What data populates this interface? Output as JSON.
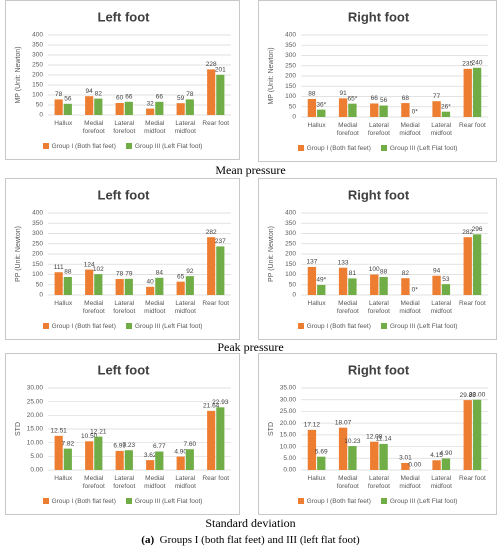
{
  "chart_data": [
    {
      "type": "bar",
      "title": "Left foot",
      "y_label": "MP (Unit: Newton)",
      "categories": [
        "Hallux",
        "Medial forefoot",
        "Lateral forefoot",
        "Medial midfoot",
        "Lateral midfoot",
        "Rear foot"
      ],
      "series": [
        {
          "name": "Group I (Both flat feet)",
          "color": "#ed7d31",
          "values": [
            78,
            94,
            60,
            32,
            59,
            228
          ]
        },
        {
          "name": "Group III (Left Flat foot)",
          "color": "#70ad47",
          "values": [
            56,
            82,
            66,
            66,
            78,
            201
          ]
        }
      ],
      "ylim": [
        0,
        400
      ],
      "yticks": [
        0,
        50,
        100,
        150,
        200,
        250,
        300,
        350,
        400
      ],
      "grid": true
    },
    {
      "type": "bar",
      "title": "Right foot",
      "y_label": "MP (Unit: Newton)",
      "categories": [
        "Hallux",
        "Medial forefoot",
        "Lateral forefoot",
        "Medial midfoot",
        "Lateral midfoot",
        "Rear foot"
      ],
      "series": [
        {
          "name": "Group I (Both flat feet)",
          "color": "#ed7d31",
          "values": [
            88,
            91,
            66,
            68,
            77,
            235
          ]
        },
        {
          "name": "Group III (Left Flat foot)",
          "color": "#70ad47",
          "values": [
            36,
            65,
            56,
            0,
            26,
            240
          ],
          "value_labels": [
            "36*",
            "65*",
            "56",
            "0*",
            "26*",
            "240"
          ]
        }
      ],
      "ylim": [
        0,
        400
      ],
      "yticks": [
        0,
        50,
        100,
        150,
        200,
        250,
        300,
        350,
        400
      ],
      "grid": true
    },
    {
      "type": "bar",
      "title": "Left foot",
      "y_label": "PP (Unit: Newton)",
      "categories": [
        "Hallux",
        "Medial forefoot",
        "Lateral forefoot",
        "Medial midfoot",
        "Lateral midfoot",
        "Rear foot"
      ],
      "series": [
        {
          "name": "Group I (Both flat feet)",
          "color": "#ed7d31",
          "values": [
            111,
            124,
            78,
            40,
            65,
            282
          ]
        },
        {
          "name": "Group III (Left Flat foot)",
          "color": "#70ad47",
          "values": [
            88,
            102,
            79,
            84,
            92,
            237
          ]
        }
      ],
      "ylim": [
        0,
        400
      ],
      "yticks": [
        0,
        50,
        100,
        150,
        200,
        250,
        300,
        350,
        400
      ],
      "grid": true
    },
    {
      "type": "bar",
      "title": "Right foot",
      "y_label": "PP (Unit: Newton)",
      "categories": [
        "Hallux",
        "Medial forefoot",
        "Lateral forefoot",
        "Medial midfoot",
        "Lateral midfoot",
        "Rear foot"
      ],
      "series": [
        {
          "name": "Group I (Both flat feet)",
          "color": "#ed7d31",
          "values": [
            137,
            133,
            100,
            82,
            94,
            282
          ]
        },
        {
          "name": "Group III (Left Flat foot)",
          "color": "#70ad47",
          "values": [
            49,
            81,
            88,
            0,
            53,
            296
          ],
          "value_labels": [
            "49*",
            "81",
            "88",
            "0*",
            "53",
            "296"
          ]
        }
      ],
      "ylim": [
        0,
        400
      ],
      "yticks": [
        0,
        50,
        100,
        150,
        200,
        250,
        300,
        350,
        400
      ],
      "grid": true
    },
    {
      "type": "bar",
      "title": "Left foot",
      "y_label": "STD",
      "categories": [
        "Hallux",
        "Medial forefoot",
        "Lateral forefoot",
        "Medial midfoot",
        "Lateral midfoot",
        "Rear foot"
      ],
      "series": [
        {
          "name": "Group I (Both flat feet)",
          "color": "#ed7d31",
          "values": [
            12.51,
            10.5,
            6.99,
            3.62,
            4.9,
            21.64
          ],
          "value_labels": [
            "12.51",
            "10.50",
            "6.99",
            "3.62",
            "4.90",
            "21.64"
          ]
        },
        {
          "name": "Group III (Left Flat foot)",
          "color": "#70ad47",
          "values": [
            7.82,
            12.21,
            7.23,
            6.77,
            7.6,
            22.93
          ],
          "value_labels": [
            "7.82",
            "12.21",
            "7.23",
            "6.77",
            "7.60",
            "22.93"
          ]
        }
      ],
      "ylim": [
        0,
        30
      ],
      "yticks": [
        {
          "value": 0,
          "label": "0.00"
        },
        {
          "value": 5,
          "label": "5.00"
        },
        {
          "value": 10,
          "label": "10.00"
        },
        {
          "value": 15,
          "label": "15.00"
        },
        {
          "value": 20,
          "label": "20.00"
        },
        {
          "value": 25,
          "label": "25.00"
        },
        {
          "value": 30,
          "label": "30.00"
        }
      ],
      "grid": true
    },
    {
      "type": "bar",
      "title": "Right foot",
      "y_label": "STD",
      "categories": [
        "Hallux",
        "Medial forefoot",
        "Lateral forefoot",
        "Medial midfoot",
        "Lateral midfoot",
        "Rear foot"
      ],
      "series": [
        {
          "name": "Group I (Both flat feet)",
          "color": "#ed7d31",
          "values": [
            17.12,
            18.07,
            12.08,
            3.01,
            4.15,
            29.83
          ]
        },
        {
          "name": "Group III (Left Flat foot)",
          "color": "#70ad47",
          "values": [
            5.69,
            10.23,
            11.14,
            0,
            4.9,
            30
          ],
          "value_labels": [
            "5.69",
            "10.23",
            "11.14",
            "0.00",
            "4.90",
            "30.00"
          ]
        }
      ],
      "ylim": [
        0,
        35
      ],
      "yticks": [
        {
          "value": 0,
          "label": "0.00"
        },
        {
          "value": 5,
          "label": "5.00"
        },
        {
          "value": 10,
          "label": "10.00"
        },
        {
          "value": 15,
          "label": "15.00"
        },
        {
          "value": 20,
          "label": "20.00"
        },
        {
          "value": 25,
          "label": "25.00"
        },
        {
          "value": 30,
          "label": "30.00"
        },
        {
          "value": 35,
          "label": "35.00"
        }
      ],
      "grid": true
    }
  ],
  "captions": [
    "Mean pressure",
    "Peak pressure",
    "Standard deviation"
  ],
  "figure_caption": {
    "label": "(a)",
    "text": "Groups I (both flat feet) and III (left flat foot)"
  }
}
